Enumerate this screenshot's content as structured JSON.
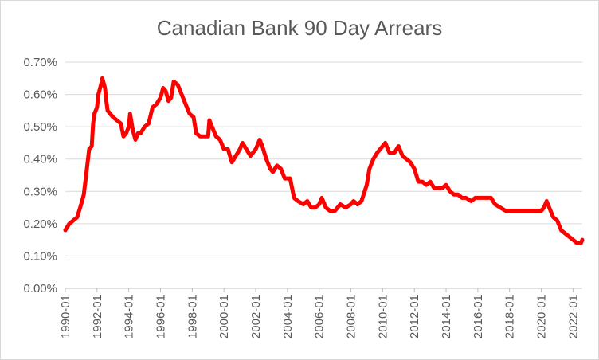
{
  "chart_data": {
    "type": "line",
    "title": "Canadian Bank 90 Day Arrears",
    "xlabel": "",
    "ylabel": "",
    "ylim": [
      0,
      0.7
    ],
    "y_ticks": [
      0.0,
      0.1,
      0.2,
      0.3,
      0.4,
      0.5,
      0.6,
      0.7
    ],
    "y_tick_labels": [
      "0.00%",
      "0.10%",
      "0.20%",
      "0.30%",
      "0.40%",
      "0.50%",
      "0.60%",
      "0.70%"
    ],
    "x_range": [
      "1990-01",
      "2022-08"
    ],
    "x_tick_labels": [
      "1990-01",
      "1992-01",
      "1994-01",
      "1996-01",
      "1998-01",
      "2000-01",
      "2002-01",
      "2004-01",
      "2006-01",
      "2008-01",
      "2010-01",
      "2012-01",
      "2014-01",
      "2016-01",
      "2018-01",
      "2020-01",
      "2022-01"
    ],
    "grid": true,
    "legend": "none",
    "series": [
      {
        "color": "#ff0000",
        "points": [
          [
            "1990-01",
            0.18
          ],
          [
            "1990-04",
            0.2
          ],
          [
            "1990-07",
            0.21
          ],
          [
            "1990-10",
            0.22
          ],
          [
            "1991-01",
            0.26
          ],
          [
            "1991-03",
            0.29
          ],
          [
            "1991-05",
            0.36
          ],
          [
            "1991-07",
            0.43
          ],
          [
            "1991-09",
            0.44
          ],
          [
            "1991-10",
            0.51
          ],
          [
            "1991-11",
            0.54
          ],
          [
            "1992-01",
            0.56
          ],
          [
            "1992-02",
            0.6
          ],
          [
            "1992-04",
            0.63
          ],
          [
            "1992-05",
            0.65
          ],
          [
            "1992-07",
            0.62
          ],
          [
            "1992-08",
            0.58
          ],
          [
            "1992-09",
            0.55
          ],
          [
            "1993-01",
            0.53
          ],
          [
            "1993-04",
            0.52
          ],
          [
            "1993-07",
            0.51
          ],
          [
            "1993-09",
            0.47
          ],
          [
            "1993-11",
            0.48
          ],
          [
            "1994-01",
            0.5
          ],
          [
            "1994-02",
            0.54
          ],
          [
            "1994-04",
            0.49
          ],
          [
            "1994-06",
            0.46
          ],
          [
            "1994-08",
            0.48
          ],
          [
            "1994-10",
            0.48
          ],
          [
            "1995-01",
            0.5
          ],
          [
            "1995-04",
            0.51
          ],
          [
            "1995-07",
            0.56
          ],
          [
            "1995-10",
            0.57
          ],
          [
            "1996-01",
            0.59
          ],
          [
            "1996-03",
            0.62
          ],
          [
            "1996-05",
            0.61
          ],
          [
            "1996-07",
            0.58
          ],
          [
            "1996-09",
            0.59
          ],
          [
            "1996-11",
            0.64
          ],
          [
            "1997-02",
            0.63
          ],
          [
            "1997-05",
            0.6
          ],
          [
            "1997-08",
            0.57
          ],
          [
            "1997-11",
            0.54
          ],
          [
            "1998-02",
            0.53
          ],
          [
            "1998-04",
            0.48
          ],
          [
            "1998-07",
            0.47
          ],
          [
            "1998-10",
            0.47
          ],
          [
            "1999-01",
            0.47
          ],
          [
            "1999-02",
            0.52
          ],
          [
            "1999-04",
            0.5
          ],
          [
            "1999-07",
            0.47
          ],
          [
            "1999-10",
            0.46
          ],
          [
            "2000-01",
            0.43
          ],
          [
            "2000-04",
            0.43
          ],
          [
            "2000-07",
            0.39
          ],
          [
            "2000-10",
            0.41
          ],
          [
            "2001-01",
            0.43
          ],
          [
            "2001-03",
            0.45
          ],
          [
            "2001-06",
            0.43
          ],
          [
            "2001-09",
            0.41
          ],
          [
            "2002-01",
            0.43
          ],
          [
            "2002-04",
            0.46
          ],
          [
            "2002-06",
            0.44
          ],
          [
            "2002-09",
            0.4
          ],
          [
            "2002-12",
            0.37
          ],
          [
            "2003-02",
            0.36
          ],
          [
            "2003-05",
            0.38
          ],
          [
            "2003-08",
            0.37
          ],
          [
            "2003-11",
            0.34
          ],
          [
            "2004-03",
            0.34
          ],
          [
            "2004-06",
            0.28
          ],
          [
            "2004-09",
            0.27
          ],
          [
            "2005-01",
            0.26
          ],
          [
            "2005-04",
            0.27
          ],
          [
            "2005-07",
            0.25
          ],
          [
            "2005-10",
            0.25
          ],
          [
            "2006-01",
            0.26
          ],
          [
            "2006-03",
            0.28
          ],
          [
            "2006-06",
            0.25
          ],
          [
            "2006-09",
            0.24
          ],
          [
            "2007-01",
            0.24
          ],
          [
            "2007-05",
            0.26
          ],
          [
            "2007-09",
            0.25
          ],
          [
            "2008-01",
            0.26
          ],
          [
            "2008-03",
            0.27
          ],
          [
            "2008-06",
            0.26
          ],
          [
            "2008-09",
            0.27
          ],
          [
            "2009-01",
            0.32
          ],
          [
            "2009-03",
            0.37
          ],
          [
            "2009-06",
            0.4
          ],
          [
            "2009-09",
            0.42
          ],
          [
            "2010-01",
            0.44
          ],
          [
            "2010-03",
            0.45
          ],
          [
            "2010-06",
            0.42
          ],
          [
            "2010-10",
            0.42
          ],
          [
            "2011-01",
            0.44
          ],
          [
            "2011-04",
            0.41
          ],
          [
            "2011-07",
            0.4
          ],
          [
            "2011-10",
            0.39
          ],
          [
            "2012-01",
            0.37
          ],
          [
            "2012-04",
            0.33
          ],
          [
            "2012-07",
            0.33
          ],
          [
            "2012-10",
            0.32
          ],
          [
            "2013-01",
            0.33
          ],
          [
            "2013-04",
            0.31
          ],
          [
            "2013-07",
            0.31
          ],
          [
            "2013-10",
            0.31
          ],
          [
            "2014-01",
            0.32
          ],
          [
            "2014-04",
            0.3
          ],
          [
            "2014-07",
            0.29
          ],
          [
            "2014-10",
            0.29
          ],
          [
            "2015-01",
            0.28
          ],
          [
            "2015-04",
            0.28
          ],
          [
            "2015-08",
            0.27
          ],
          [
            "2015-11",
            0.28
          ],
          [
            "2016-02",
            0.28
          ],
          [
            "2016-05",
            0.28
          ],
          [
            "2016-08",
            0.28
          ],
          [
            "2016-11",
            0.28
          ],
          [
            "2017-02",
            0.26
          ],
          [
            "2017-06",
            0.25
          ],
          [
            "2017-10",
            0.24
          ],
          [
            "2018-01",
            0.24
          ],
          [
            "2018-05",
            0.24
          ],
          [
            "2018-09",
            0.24
          ],
          [
            "2019-01",
            0.24
          ],
          [
            "2019-05",
            0.24
          ],
          [
            "2019-09",
            0.24
          ],
          [
            "2020-01",
            0.24
          ],
          [
            "2020-03",
            0.25
          ],
          [
            "2020-05",
            0.27
          ],
          [
            "2020-07",
            0.25
          ],
          [
            "2020-10",
            0.22
          ],
          [
            "2021-01",
            0.21
          ],
          [
            "2021-04",
            0.18
          ],
          [
            "2021-07",
            0.17
          ],
          [
            "2021-10",
            0.16
          ],
          [
            "2022-01",
            0.15
          ],
          [
            "2022-04",
            0.14
          ],
          [
            "2022-07",
            0.14
          ],
          [
            "2022-08",
            0.15
          ]
        ]
      }
    ]
  }
}
